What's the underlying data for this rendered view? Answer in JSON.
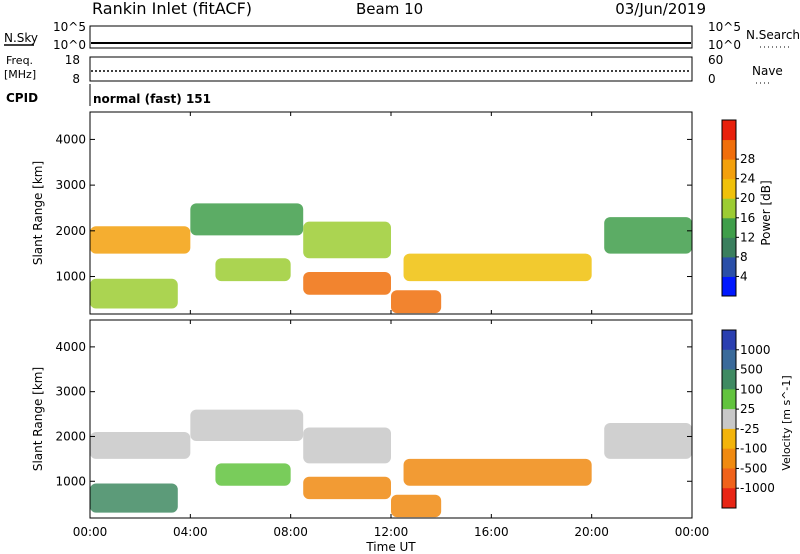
{
  "header": {
    "title": "Rankin Inlet (fitACF)",
    "beam": "Beam 10",
    "date": "03/Jun/2019"
  },
  "noise_panel": {
    "left_label": "N.Sky",
    "left_ticks": [
      "10^5",
      "10^0"
    ],
    "right_label": "N.Search",
    "right_ticks": [
      "10^5",
      "10^0"
    ]
  },
  "freq_panel": {
    "left_label_line1": "Freq.",
    "left_label_line2": "[MHz]",
    "left_ticks": [
      "18",
      "8"
    ],
    "right_label": "Nave",
    "right_ticks": [
      "60",
      "0"
    ]
  },
  "cpid_panel": {
    "label": "CPID",
    "mode_text": "normal (fast) 151"
  },
  "colors": {
    "power": [
      "#0018ff",
      "#2a4fa8",
      "#3a7f5e",
      "#3f9e4a",
      "#9ccc33",
      "#f0c10a",
      "#f3a00c",
      "#f06e0b",
      "#e8200c"
    ],
    "velocity": [
      "#2a3fb0",
      "#3a6a9a",
      "#3f8a62",
      "#62c33e",
      "#c8c8c8",
      "#f3b40b",
      "#f08a10",
      "#f0621a",
      "#e82515"
    ]
  },
  "chart_data": [
    {
      "type": "heatmap",
      "title": "",
      "xlabel": "Time UT",
      "ylabel": "Slant Range [km]",
      "xlim": [
        0,
        24
      ],
      "ylim": [
        180,
        4600
      ],
      "x_ticks": [
        "00:00",
        "04:00",
        "08:00",
        "12:00",
        "16:00",
        "20:00",
        "00:00"
      ],
      "y_ticks": [
        1000,
        2000,
        3000,
        4000
      ],
      "colorbar_label": "Power [dB]",
      "colorbar_ticks": [
        "4",
        "8",
        "12",
        "16",
        "20",
        "24",
        "28"
      ],
      "colorbar_range": [
        0,
        30
      ],
      "regions": [
        {
          "t_start": 0.0,
          "t_end": 4.0,
          "range_min": 1500,
          "range_max": 2100,
          "value": 20
        },
        {
          "t_start": 4.0,
          "t_end": 8.5,
          "range_min": 1900,
          "range_max": 2600,
          "value": 12
        },
        {
          "t_start": 8.5,
          "t_end": 12.0,
          "range_min": 1400,
          "range_max": 2200,
          "value": 14
        },
        {
          "t_start": 0.0,
          "t_end": 3.5,
          "range_min": 300,
          "range_max": 950,
          "value": 14
        },
        {
          "t_start": 5.0,
          "t_end": 8.0,
          "range_min": 900,
          "range_max": 1400,
          "value": 14
        },
        {
          "t_start": 8.5,
          "t_end": 12.0,
          "range_min": 600,
          "range_max": 1100,
          "value": 24
        },
        {
          "t_start": 12.0,
          "t_end": 14.0,
          "range_min": 200,
          "range_max": 700,
          "value": 26
        },
        {
          "t_start": 12.5,
          "t_end": 20.0,
          "range_min": 900,
          "range_max": 1500,
          "value": 18
        },
        {
          "t_start": 20.5,
          "t_end": 24.0,
          "range_min": 1500,
          "range_max": 2300,
          "value": 10
        }
      ]
    },
    {
      "type": "heatmap",
      "title": "",
      "xlabel": "Time UT",
      "ylabel": "Slant Range [km]",
      "xlim": [
        0,
        24
      ],
      "ylim": [
        180,
        4600
      ],
      "x_ticks": [
        "00:00",
        "04:00",
        "08:00",
        "12:00",
        "16:00",
        "20:00",
        "00:00"
      ],
      "y_ticks": [
        1000,
        2000,
        3000,
        4000
      ],
      "colorbar_label": "Velocity [m s^-1]",
      "colorbar_ticks": [
        "1000",
        "500",
        "100",
        "25",
        "-25",
        "-100",
        "-500",
        "-1000"
      ],
      "regions": [
        {
          "t_start": 0.0,
          "t_end": 4.0,
          "range_min": 1500,
          "range_max": 2100,
          "value": 0
        },
        {
          "t_start": 4.0,
          "t_end": 8.5,
          "range_min": 1900,
          "range_max": 2600,
          "value": 0
        },
        {
          "t_start": 8.5,
          "t_end": 12.0,
          "range_min": 1400,
          "range_max": 2200,
          "value": 0
        },
        {
          "t_start": 0.0,
          "t_end": 3.5,
          "range_min": 300,
          "range_max": 950,
          "value": 150
        },
        {
          "t_start": 5.0,
          "t_end": 8.0,
          "range_min": 900,
          "range_max": 1400,
          "value": 50
        },
        {
          "t_start": 8.5,
          "t_end": 12.0,
          "range_min": 600,
          "range_max": 1100,
          "value": -300
        },
        {
          "t_start": 12.0,
          "t_end": 14.0,
          "range_min": 200,
          "range_max": 700,
          "value": -250
        },
        {
          "t_start": 12.5,
          "t_end": 20.0,
          "range_min": 900,
          "range_max": 1500,
          "value": -400
        },
        {
          "t_start": 20.5,
          "t_end": 24.0,
          "range_min": 1500,
          "range_max": 2300,
          "value": 0
        }
      ]
    }
  ]
}
